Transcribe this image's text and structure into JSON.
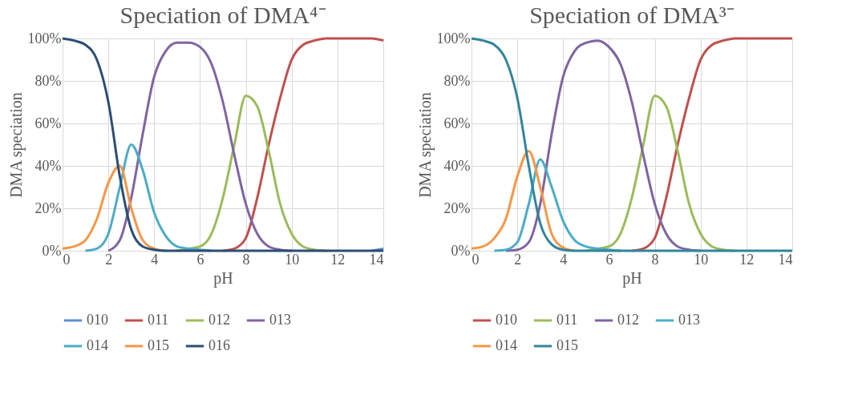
{
  "chart_data": [
    {
      "type": "line",
      "title": "Speciation of DMA⁴⁻",
      "xlabel": "pH",
      "ylabel": "DMA speciation",
      "grid": true,
      "legend": "bottom",
      "marker": "none",
      "line_style": "solid",
      "xlim": [
        0,
        14
      ],
      "xticks": [
        0,
        2,
        4,
        6,
        8,
        10,
        12,
        14
      ],
      "ylim": [
        0,
        100
      ],
      "yticks": [
        {
          "value": 0,
          "label": "0%"
        },
        {
          "value": 20,
          "label": "20%"
        },
        {
          "value": 40,
          "label": "40%"
        },
        {
          "value": 60,
          "label": "60%"
        },
        {
          "value": 80,
          "label": "80%"
        },
        {
          "value": 100,
          "label": "100%"
        }
      ],
      "x": [
        0,
        0.5,
        1,
        1.5,
        2,
        2.5,
        3,
        3.5,
        4,
        4.5,
        5,
        5.5,
        6,
        6.5,
        7,
        7.5,
        8,
        8.5,
        9,
        9.5,
        10,
        10.5,
        11,
        11.5,
        12,
        12.5,
        13,
        13.5,
        14
      ],
      "series": [
        {
          "name": "010",
          "color": "#5b8fd0",
          "values": [
            null,
            null,
            null,
            null,
            null,
            null,
            null,
            null,
            null,
            null,
            null,
            null,
            null,
            null,
            null,
            null,
            null,
            null,
            null,
            null,
            null,
            null,
            null,
            null,
            null,
            null,
            null,
            0,
            1
          ]
        },
        {
          "name": "011",
          "color": "#c0504d",
          "values": [
            null,
            null,
            null,
            null,
            null,
            null,
            null,
            null,
            null,
            null,
            null,
            null,
            null,
            null,
            0,
            1,
            6,
            25,
            50,
            72,
            90,
            97,
            99,
            100,
            100,
            100,
            100,
            100,
            99
          ]
        },
        {
          "name": "012",
          "color": "#9bbb59",
          "values": [
            null,
            null,
            null,
            null,
            null,
            null,
            null,
            null,
            null,
            null,
            0,
            1,
            2,
            8,
            25,
            50,
            73,
            68,
            47,
            22,
            8,
            2,
            0.5,
            0,
            null,
            null,
            null,
            null,
            null
          ]
        },
        {
          "name": "013",
          "color": "#8064a2",
          "values": [
            null,
            null,
            null,
            null,
            0,
            5,
            25,
            55,
            82,
            94,
            98,
            98,
            96,
            88,
            70,
            45,
            22,
            8,
            2,
            0.5,
            0,
            null,
            null,
            null,
            null,
            null,
            null,
            null,
            null
          ]
        },
        {
          "name": "014",
          "color": "#4bacc6",
          "values": [
            null,
            null,
            0,
            1,
            8,
            30,
            50,
            38,
            18,
            7,
            2,
            1,
            0.5,
            0,
            null,
            null,
            null,
            null,
            null,
            null,
            null,
            null,
            null,
            null,
            null,
            null,
            null,
            null,
            null
          ]
        },
        {
          "name": "015",
          "color": "#f79646",
          "values": [
            1,
            2,
            5,
            15,
            32,
            40,
            20,
            5,
            1,
            0,
            null,
            null,
            null,
            null,
            null,
            null,
            null,
            null,
            null,
            null,
            null,
            null,
            null,
            null,
            null,
            null,
            null,
            null,
            null
          ]
        },
        {
          "name": "016",
          "color": "#2c4d75",
          "values": [
            100,
            99,
            97,
            90,
            70,
            35,
            10,
            2,
            0.5,
            0,
            0,
            0,
            0,
            0,
            0,
            0,
            0,
            0,
            0,
            0,
            0,
            0,
            0,
            0,
            0,
            0,
            0,
            0,
            0
          ]
        }
      ]
    },
    {
      "type": "line",
      "title": "Speciation of DMA³⁻",
      "xlabel": "pH",
      "ylabel": "DMA speciation",
      "grid": true,
      "legend": "bottom",
      "marker": "none",
      "line_style": "solid",
      "xlim": [
        0,
        14
      ],
      "xticks": [
        0,
        2,
        4,
        6,
        8,
        10,
        12,
        14
      ],
      "ylim": [
        0,
        100
      ],
      "yticks": [
        {
          "value": 0,
          "label": "0%"
        },
        {
          "value": 20,
          "label": "20%"
        },
        {
          "value": 40,
          "label": "40%"
        },
        {
          "value": 60,
          "label": "60%"
        },
        {
          "value": 80,
          "label": "80%"
        },
        {
          "value": 100,
          "label": "100%"
        }
      ],
      "x": [
        0,
        0.5,
        1,
        1.5,
        2,
        2.5,
        3,
        3.5,
        4,
        4.5,
        5,
        5.5,
        6,
        6.5,
        7,
        7.5,
        8,
        8.5,
        9,
        9.5,
        10,
        10.5,
        11,
        11.5,
        12,
        12.5,
        13,
        13.5,
        14
      ],
      "series": [
        {
          "name": "010",
          "color": "#c0504d",
          "values": [
            null,
            null,
            null,
            null,
            null,
            null,
            null,
            null,
            null,
            null,
            null,
            null,
            null,
            null,
            0,
            1,
            6,
            25,
            50,
            72,
            90,
            97,
            99,
            100,
            100,
            100,
            100,
            100,
            100
          ]
        },
        {
          "name": "011",
          "color": "#9bbb59",
          "values": [
            null,
            null,
            null,
            null,
            null,
            null,
            null,
            null,
            null,
            null,
            0,
            1,
            2,
            8,
            25,
            50,
            73,
            68,
            47,
            22,
            8,
            2,
            0.5,
            0,
            null,
            null,
            null,
            null,
            null
          ]
        },
        {
          "name": "012",
          "color": "#8064a2",
          "values": [
            null,
            null,
            null,
            0,
            0.5,
            4,
            22,
            55,
            82,
            94,
            98,
            99,
            96,
            88,
            70,
            45,
            22,
            8,
            2,
            0.5,
            0,
            null,
            null,
            null,
            null,
            null,
            null,
            null,
            null
          ]
        },
        {
          "name": "013",
          "color": "#4bacc6",
          "values": [
            null,
            null,
            0,
            0.5,
            4,
            22,
            43,
            30,
            14,
            5,
            2,
            1,
            0.5,
            0,
            null,
            null,
            null,
            null,
            null,
            null,
            null,
            null,
            null,
            null,
            null,
            null,
            null,
            null,
            null
          ]
        },
        {
          "name": "014",
          "color": "#f79646",
          "values": [
            1,
            2,
            6,
            15,
            35,
            47,
            30,
            8,
            1.5,
            0,
            null,
            null,
            null,
            null,
            null,
            null,
            null,
            null,
            null,
            null,
            null,
            null,
            null,
            null,
            null,
            null,
            null,
            null,
            null
          ]
        },
        {
          "name": "015",
          "color": "#31859c",
          "values": [
            100,
            99,
            97,
            90,
            72,
            40,
            13,
            3,
            0.5,
            0,
            0,
            0,
            0,
            0,
            0,
            0,
            0,
            0,
            0,
            0,
            0,
            0,
            0,
            0,
            0,
            0,
            0,
            0,
            0
          ]
        }
      ]
    }
  ]
}
